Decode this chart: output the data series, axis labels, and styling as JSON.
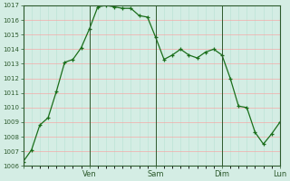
{
  "x_values": [
    0,
    1,
    2,
    3,
    4,
    5,
    6,
    7,
    8,
    9,
    10,
    11,
    12,
    13,
    14,
    15,
    16,
    17,
    18,
    19,
    20,
    21,
    22,
    23,
    24,
    25,
    26,
    27,
    28,
    29,
    30,
    31
  ],
  "y_values": [
    1006.3,
    1007.1,
    1008.8,
    1009.3,
    1011.1,
    1013.1,
    1013.3,
    1014.1,
    1015.4,
    1016.9,
    1017.0,
    1016.9,
    1016.8,
    1016.8,
    1016.3,
    1016.2,
    1014.8,
    1013.3,
    1013.6,
    1014.0,
    1013.6,
    1013.4,
    1013.8,
    1014.0,
    1013.6,
    1012.0,
    1010.1,
    1010.0,
    1008.3,
    1007.5,
    1008.2,
    1009.0
  ],
  "ven_x": 8,
  "sam_x": 16,
  "dim_x": 24,
  "lun_x": 31,
  "x_tick_positions": [
    0,
    8,
    16,
    24,
    31
  ],
  "x_tick_labels": [
    "",
    "Ven",
    "Sam",
    "Dim",
    "Lun"
  ],
  "y_min": 1006,
  "y_max": 1017,
  "y_ticks": [
    1006,
    1007,
    1008,
    1009,
    1010,
    1011,
    1012,
    1013,
    1014,
    1015,
    1016,
    1017
  ],
  "line_color": "#1a6e1a",
  "marker": "+",
  "bg_color": "#d4ede4",
  "grid_color_major": "#ff9999",
  "grid_color_minor": "#aaddcc",
  "vline_color": "#2d5a2d",
  "vline_positions": [
    8,
    16,
    24,
    31
  ],
  "spine_color": "#2d5a2d",
  "tick_color": "#2d5a2d",
  "label_color": "#2d5a2d"
}
